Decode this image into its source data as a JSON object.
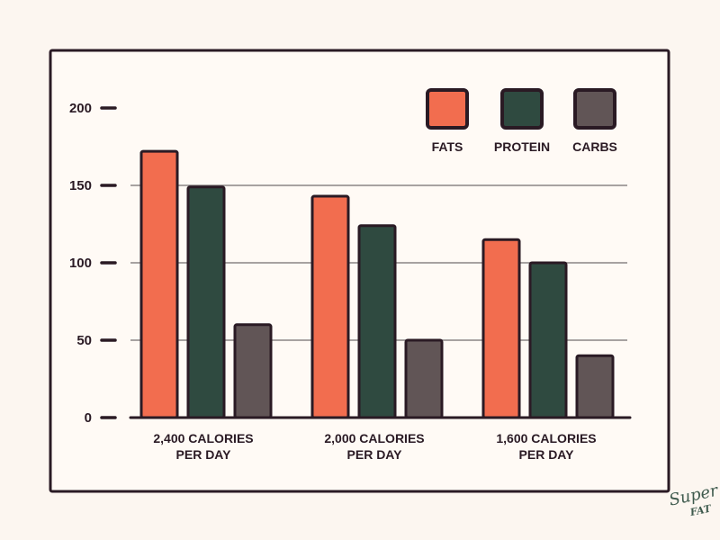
{
  "chart_data": {
    "type": "bar",
    "categories": [
      [
        "2,400 CALORIES",
        "PER DAY"
      ],
      [
        "2,000 CALORIES",
        "PER DAY"
      ],
      [
        "1,600 CALORIES",
        "PER DAY"
      ]
    ],
    "series": [
      {
        "name": "FATS",
        "color": "#f26d4f",
        "values": [
          172,
          143,
          115
        ]
      },
      {
        "name": "PROTEIN",
        "color": "#2f4a40",
        "values": [
          149,
          124,
          100
        ]
      },
      {
        "name": "CARBS",
        "color": "#615556",
        "values": [
          60,
          50,
          40
        ]
      }
    ],
    "yticks": [
      "0",
      "50",
      "100",
      "150",
      "200"
    ],
    "ylim": [
      0,
      200
    ],
    "grid": true,
    "legend": "top-right",
    "title": "",
    "xlabel": "",
    "ylabel": ""
  },
  "logo": {
    "line1": "Super",
    "line2": "FAT"
  },
  "colors": {
    "outline": "#2a1a24",
    "background": "#fcf6f0",
    "frame_fill": "#fffaf5",
    "grid": "#8a8585"
  }
}
